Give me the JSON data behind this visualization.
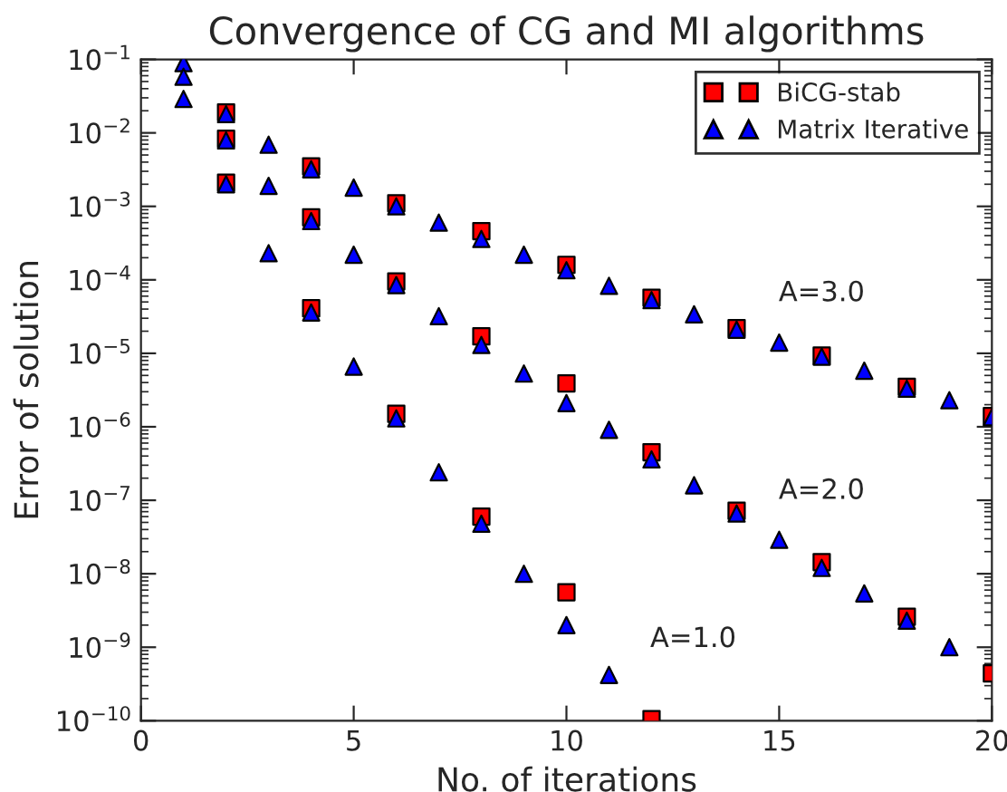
{
  "chart_data": {
    "type": "scatter",
    "title": "Convergence of CG and MI algorithms",
    "xlabel": "No. of iterations",
    "ylabel": "Error of solution",
    "log": "y",
    "grid": false,
    "legend": "top right",
    "xlim": [
      0,
      20
    ],
    "xticks": [
      0,
      5,
      10,
      15,
      20
    ],
    "ylim": [
      1e-10,
      0.1
    ],
    "yticks": [
      {
        "value": 1e-10,
        "label": "10$^{−10}$"
      },
      {
        "value": 1e-09,
        "label": "10$^{−9}$"
      },
      {
        "value": 1e-08,
        "label": "10$^{−8}$"
      },
      {
        "value": 1e-07,
        "label": "10$^{−7}$"
      },
      {
        "value": 1e-06,
        "label": "10$^{−6}$"
      },
      {
        "value": 1e-05,
        "label": "10$^{−5}$"
      },
      {
        "value": 0.0001,
        "label": "10$^{−4}$"
      },
      {
        "value": 0.001,
        "label": "10$^{−3}$"
      },
      {
        "value": 0.01,
        "label": "10$^{−2}$"
      },
      {
        "value": 0.1,
        "label": "10$^{−1}$"
      }
    ],
    "series": [
      {
        "name": "BiCG-stab",
        "color": "#ff0000",
        "marker": "square",
        "x": [
          2,
          2,
          2,
          4,
          4,
          4,
          6,
          6,
          6,
          8,
          8,
          8,
          10,
          10,
          10,
          12,
          12,
          12,
          14,
          14,
          16,
          16,
          18,
          18,
          20,
          20
        ],
        "values": [
          0.019,
          0.0083,
          0.0021,
          0.0035,
          0.00071,
          4.1e-05,
          0.0011,
          9.5e-05,
          1.5e-06,
          0.00046,
          1.7e-05,
          6e-08,
          0.00016,
          3.9e-06,
          5.6e-09,
          5.7e-05,
          4.5e-07,
          1.05e-10,
          2.2e-05,
          7.2e-08,
          9.3e-06,
          1.44e-08,
          3.5e-06,
          2.6e-09,
          1.4e-06,
          4.4e-10
        ]
      },
      {
        "name": "Matrix Iterative",
        "color": "#0000ff",
        "marker": "triangle",
        "x": [
          1,
          1,
          1,
          2,
          2,
          2,
          3,
          3,
          3,
          4,
          4,
          4,
          5,
          5,
          5,
          6,
          6,
          6,
          7,
          7,
          7,
          8,
          8,
          8,
          9,
          9,
          9,
          10,
          10,
          10,
          11,
          11,
          11,
          12,
          12,
          13,
          13,
          14,
          14,
          15,
          15,
          16,
          16,
          17,
          17,
          18,
          18,
          19,
          19,
          20
        ],
        "values": [
          0.089,
          0.058,
          0.029,
          0.018,
          0.0079,
          0.002,
          0.0069,
          0.0019,
          0.00023,
          0.0032,
          0.00063,
          3.6e-05,
          0.0018,
          0.00022,
          6.6e-06,
          0.001,
          8.5e-05,
          1.3e-06,
          0.0006,
          3.2e-05,
          2.4e-07,
          0.00036,
          1.3e-05,
          4.8e-08,
          0.00022,
          5.3e-06,
          1e-08,
          0.000135,
          2.1e-06,
          2e-09,
          8.3e-05,
          9.1e-07,
          4.2e-10,
          5.3e-05,
          3.6e-07,
          3.4e-05,
          1.6e-07,
          2.1e-05,
          6.6e-08,
          1.4e-05,
          2.9e-08,
          9e-06,
          1.2e-08,
          5.8e-06,
          5.4e-09,
          3.3e-06,
          2.3e-09,
          2.3e-06,
          1e-09,
          1.35e-06
        ]
      }
    ],
    "annotations": [
      "A=3.0",
      "A=2.0",
      "A=1.0"
    ]
  }
}
